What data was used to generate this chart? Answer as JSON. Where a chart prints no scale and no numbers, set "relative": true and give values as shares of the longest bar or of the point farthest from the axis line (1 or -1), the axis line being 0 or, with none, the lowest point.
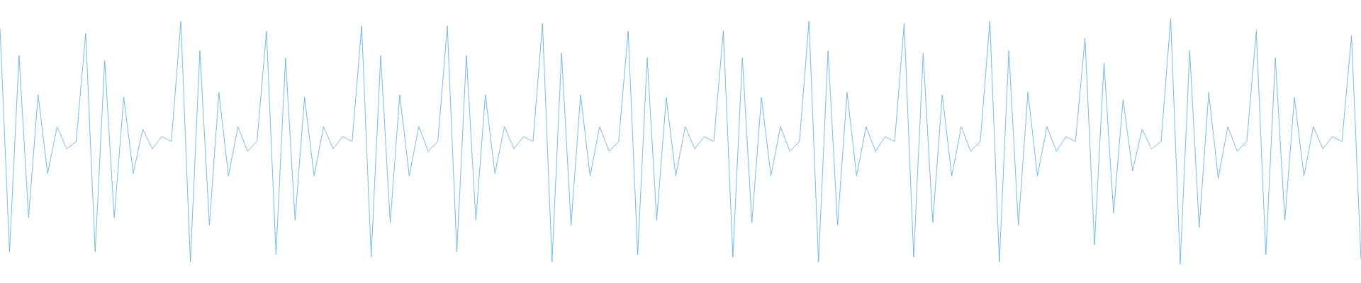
{
  "chart_data": {
    "type": "line",
    "relative": true,
    "color": "#5dade2",
    "marker": "none",
    "line_style": "solid",
    "categories": [
      null,
      null,
      null,
      null,
      null,
      null,
      null,
      null,
      null,
      null,
      null,
      null,
      null,
      null,
      null,
      null,
      null,
      null,
      null,
      null,
      null,
      null,
      null,
      null,
      null,
      null,
      null,
      null,
      null,
      null,
      null,
      null,
      null,
      null,
      null,
      null,
      null,
      null,
      null,
      null,
      null,
      null,
      null,
      null,
      null,
      null,
      null,
      null,
      null,
      null,
      null,
      null,
      null,
      null,
      null,
      null,
      null,
      null,
      null,
      null,
      null,
      null,
      null,
      null,
      null,
      null,
      null,
      null,
      null,
      null,
      null,
      null,
      null,
      null,
      null,
      null,
      null,
      null,
      null,
      null,
      null,
      null,
      null,
      null,
      null,
      null,
      null,
      null,
      null,
      null,
      null,
      null,
      null,
      null,
      null,
      null,
      null,
      null,
      null,
      null,
      null,
      null,
      null,
      null,
      null,
      null,
      null,
      null,
      null,
      null,
      null,
      null,
      null,
      null,
      null,
      null,
      null,
      null,
      null,
      null,
      null,
      null,
      null,
      null,
      null,
      null,
      null,
      null,
      null,
      null,
      null,
      null,
      null,
      null,
      null,
      null,
      null,
      null,
      null,
      null,
      null,
      null,
      null,
      null
    ],
    "values": [
      0.96,
      0.05,
      0.85,
      0.19,
      0.69,
      0.37,
      0.56,
      0.47,
      0.5,
      0.94,
      0.05,
      0.83,
      0.19,
      0.68,
      0.37,
      0.55,
      0.47,
      0.52,
      0.5,
      0.99,
      0.01,
      0.87,
      0.16,
      0.7,
      0.36,
      0.56,
      0.46,
      0.5,
      0.95,
      0.04,
      0.84,
      0.18,
      0.68,
      0.36,
      0.56,
      0.47,
      0.52,
      0.5,
      0.97,
      0.03,
      0.85,
      0.17,
      0.69,
      0.36,
      0.56,
      0.46,
      0.5,
      0.97,
      0.05,
      0.85,
      0.18,
      0.69,
      0.37,
      0.56,
      0.47,
      0.52,
      0.5,
      0.98,
      0.01,
      0.86,
      0.16,
      0.69,
      0.36,
      0.56,
      0.46,
      0.5,
      0.95,
      0.04,
      0.84,
      0.18,
      0.68,
      0.36,
      0.56,
      0.47,
      0.52,
      0.5,
      0.95,
      0.03,
      0.84,
      0.17,
      0.68,
      0.36,
      0.56,
      0.46,
      0.5,
      0.99,
      0.01,
      0.87,
      0.16,
      0.7,
      0.36,
      0.56,
      0.46,
      0.52,
      0.5,
      0.98,
      0.03,
      0.86,
      0.17,
      0.69,
      0.36,
      0.56,
      0.46,
      0.5,
      0.99,
      0.01,
      0.87,
      0.16,
      0.7,
      0.36,
      0.56,
      0.46,
      0.52,
      0.5,
      0.92,
      0.08,
      0.82,
      0.21,
      0.67,
      0.38,
      0.55,
      0.47,
      0.5,
      1,
      0,
      0.87,
      0.15,
      0.7,
      0.35,
      0.56,
      0.46,
      0.5,
      0.95,
      0.04,
      0.84,
      0.18,
      0.68,
      0.36,
      0.56,
      0.47,
      0.52,
      0.5,
      0.93,
      0.02
    ]
  }
}
